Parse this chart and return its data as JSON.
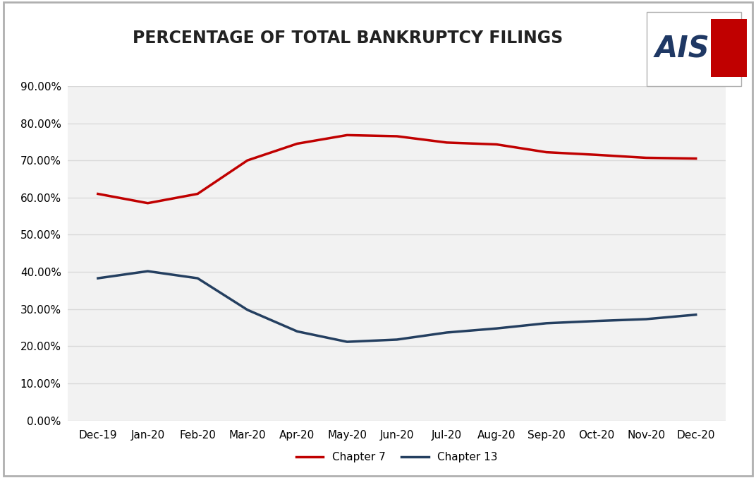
{
  "title": "PERCENTAGE OF TOTAL BANKRUPTCY FILINGS",
  "categories": [
    "Dec-19",
    "Jan-20",
    "Feb-20",
    "Mar-20",
    "Apr-20",
    "May-20",
    "Jun-20",
    "Jul-20",
    "Aug-20",
    "Sep-20",
    "Oct-20",
    "Nov-20",
    "Dec-20"
  ],
  "chapter7": [
    0.61,
    0.585,
    0.61,
    0.7,
    0.745,
    0.768,
    0.765,
    0.748,
    0.743,
    0.722,
    0.715,
    0.707,
    0.705
  ],
  "chapter13": [
    0.383,
    0.402,
    0.383,
    0.298,
    0.24,
    0.212,
    0.218,
    0.237,
    0.248,
    0.262,
    0.268,
    0.273,
    0.285
  ],
  "chapter7_color": "#c00000",
  "chapter13_color": "#243f60",
  "background_color": "#ffffff",
  "plot_background_color": "#f2f2f2",
  "grid_color": "#d9d9d9",
  "ylim": [
    0.0,
    0.9
  ],
  "yticks": [
    0.0,
    0.1,
    0.2,
    0.3,
    0.4,
    0.5,
    0.6,
    0.7,
    0.8,
    0.9
  ],
  "legend_chapter7": "Chapter 7",
  "legend_chapter13": "Chapter 13",
  "line_width": 2.5,
  "title_fontsize": 17,
  "tick_fontsize": 11,
  "legend_fontsize": 11,
  "border_color": "#b0b0b0",
  "ais_blue": "#1f3864",
  "ais_red": "#c00000"
}
